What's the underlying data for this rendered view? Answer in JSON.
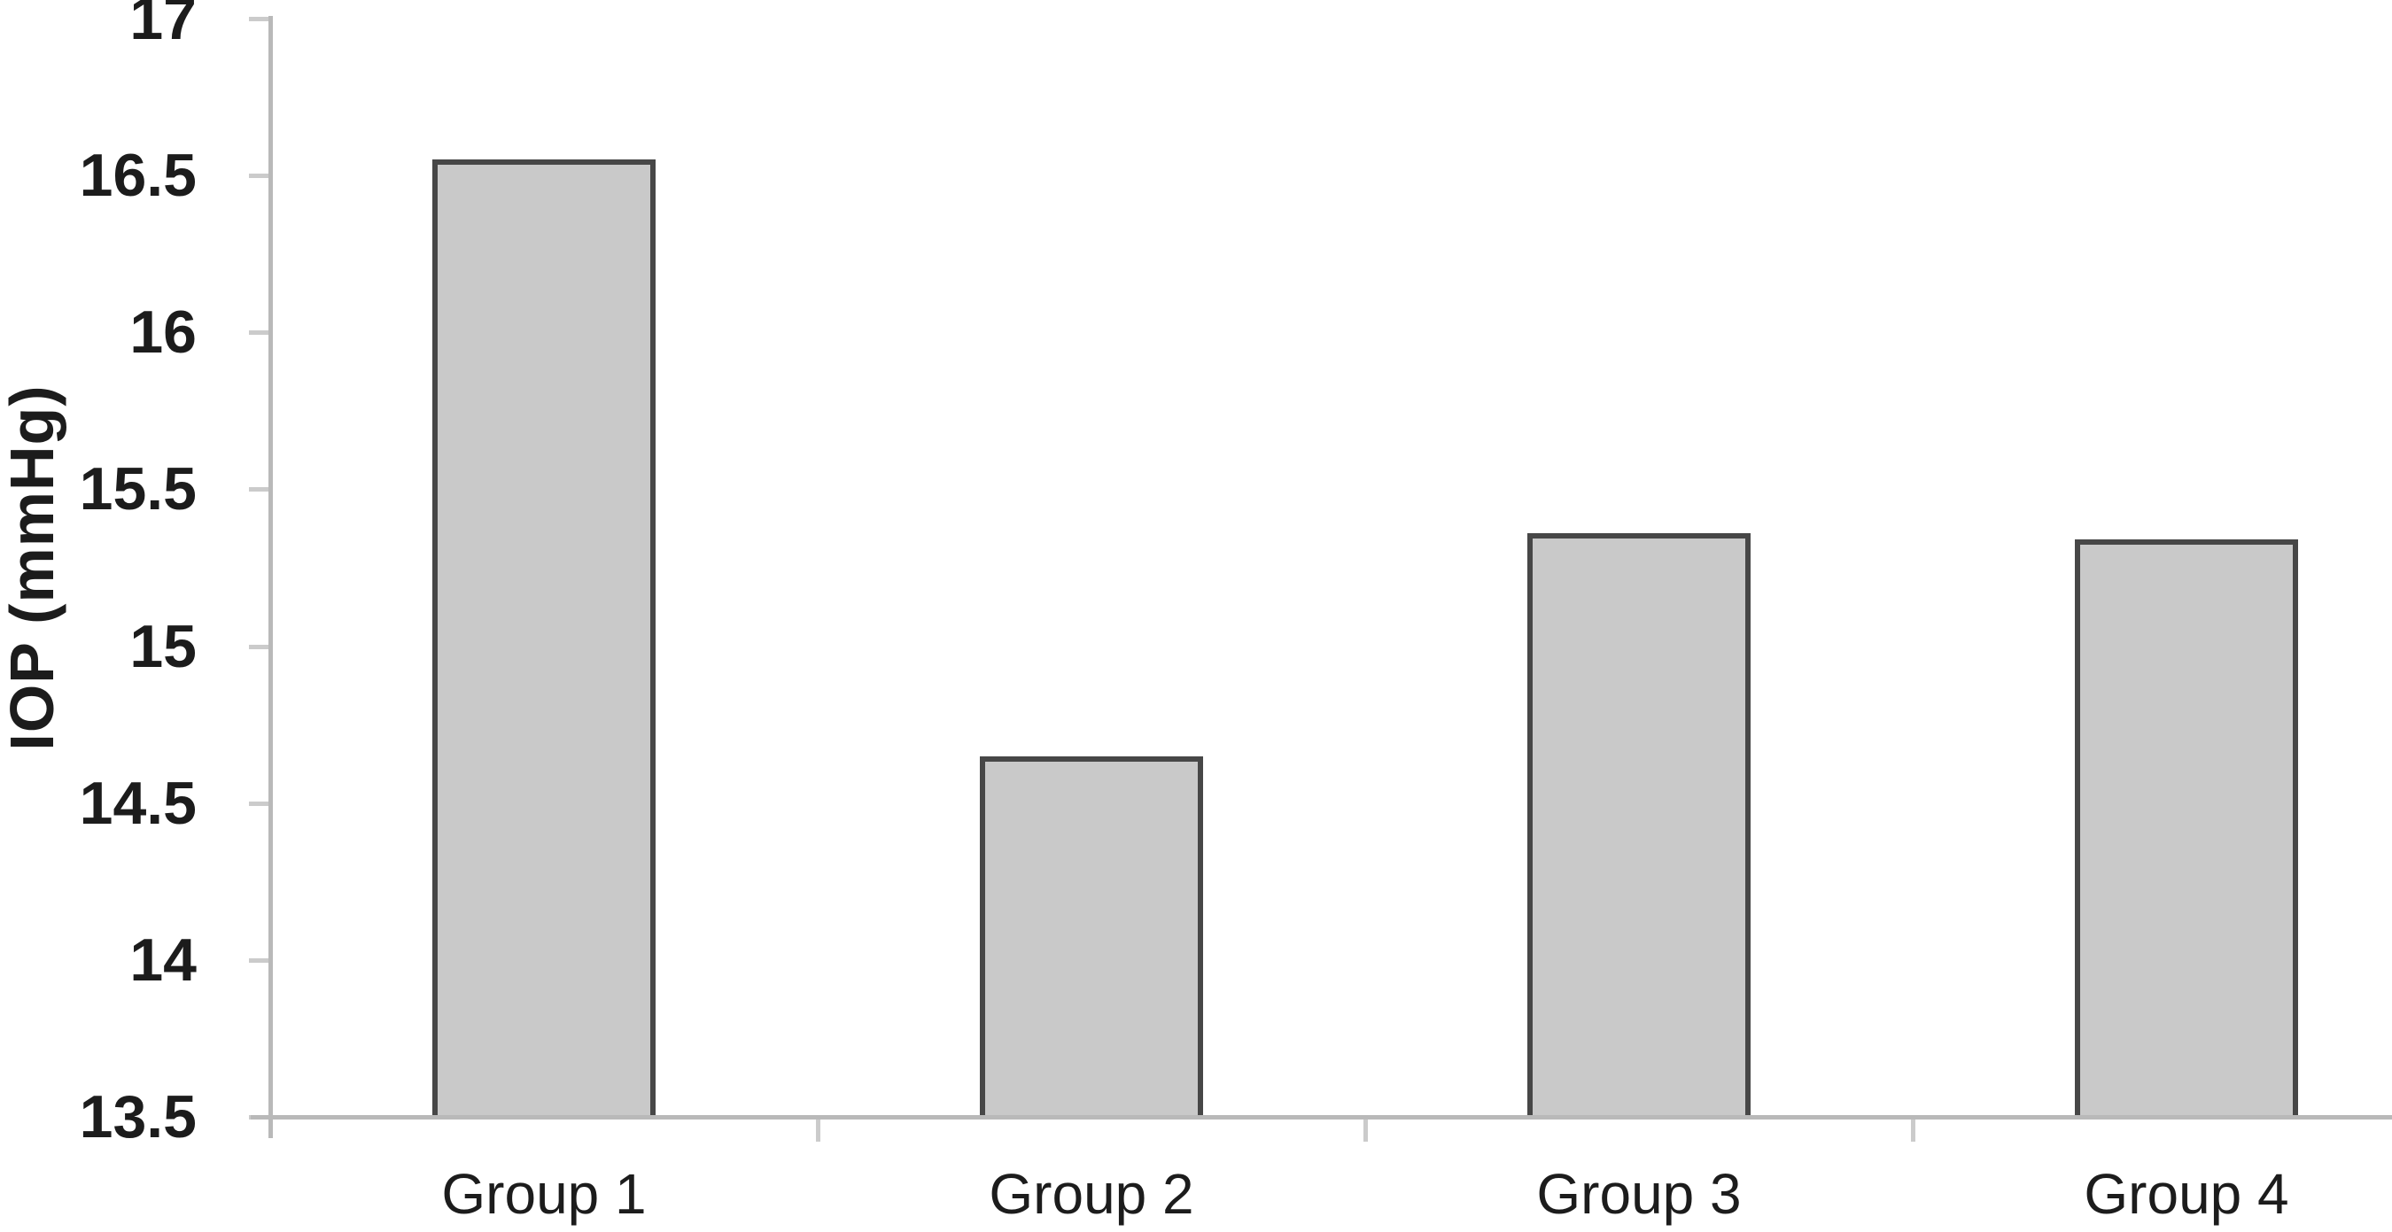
{
  "chart_data": {
    "type": "bar",
    "title": "",
    "categories": [
      "Group 1",
      "Group 2",
      "Group 3",
      "Group 4"
    ],
    "values": [
      16.55,
      14.65,
      15.36,
      15.34
    ],
    "xlabel": "",
    "ylabel": "IOP (mmHg)",
    "ylim": [
      13.5,
      17.0
    ],
    "ytick_step": 0.5,
    "ytick_labels": [
      "17",
      "16.5",
      "16",
      "15.5",
      "15",
      "14.5",
      "14",
      "13.5"
    ],
    "grid": false,
    "legend": "none",
    "colors": {
      "bar_fill": "#c9c9c9",
      "bar_border": "#474747",
      "axis_line": "#b9b9b9",
      "tick_mark": "#cbcbcb",
      "text": "#1c1c1c",
      "background": "#ffffff"
    }
  }
}
